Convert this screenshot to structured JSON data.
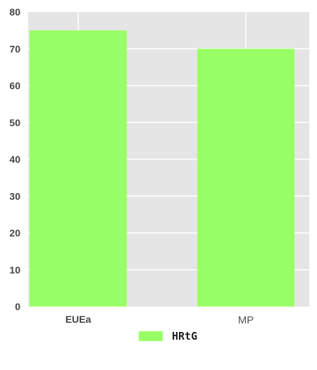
{
  "chart_data": {
    "type": "bar",
    "title": "",
    "xlabel": "",
    "ylabel": "",
    "categories": [
      "EUEa",
      "MP"
    ],
    "series": [
      {
        "name": "HRtG",
        "values": [
          75,
          70
        ],
        "color": "#99ff66"
      }
    ],
    "ylim": [
      0,
      80
    ],
    "yticks": [
      "0",
      "10",
      "20",
      "30",
      "40",
      "50",
      "60",
      "70",
      "80"
    ],
    "grid": true,
    "background_color": "#e5e5e5",
    "grid_color": "#ffffff",
    "legend_position": "bottom-center"
  }
}
